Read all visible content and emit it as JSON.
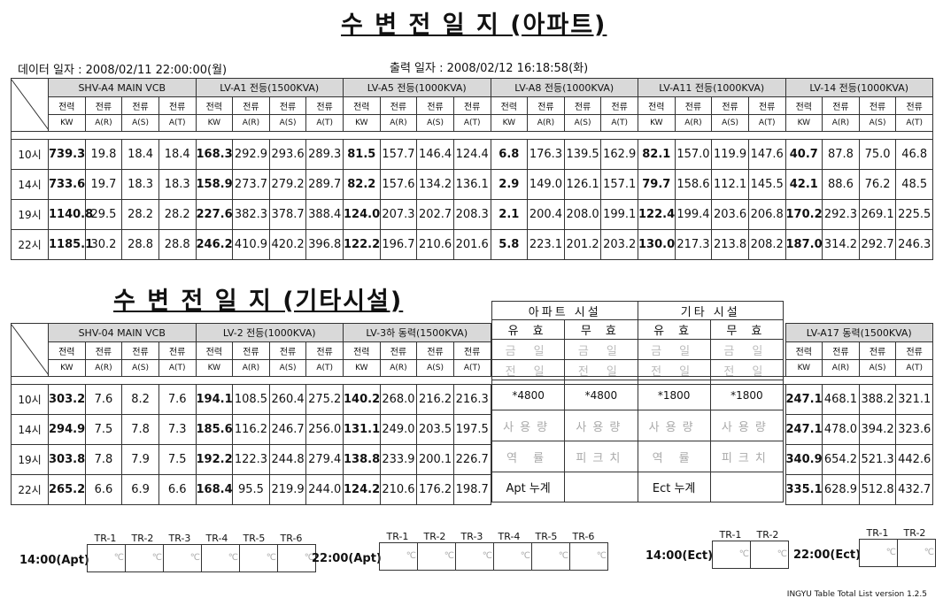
{
  "title_apt": "수 변 전 일 지 (아파트)",
  "title_etc": "수 변 전 일 지 (기타시설)",
  "data_date": "데이터 일자 : 2008/02/11 22:00:00(월)",
  "print_date": "출력 일자 :   2008/02/12  16:18:58(화)",
  "sub_headers": [
    "전력",
    "전류",
    "전류",
    "전류"
  ],
  "unit_headers": [
    "KW",
    "A(R)",
    "A(S)",
    "A(T)"
  ],
  "apt": {
    "groups": [
      "SHV-A4 MAIN VCB",
      "LV-A1 전등(1500KVA)",
      "LV-A5 전등(1000KVA)",
      "LV-A8 전등(1000KVA)",
      "LV-A11 전등(1000KVA)",
      "LV-14 전등(1000KVA)"
    ],
    "rows": [
      {
        "time": "10시",
        "values": [
          "739.3",
          "19.8",
          "18.4",
          "18.4",
          "168.3",
          "292.9",
          "293.6",
          "289.3",
          "81.5",
          "157.7",
          "146.4",
          "124.4",
          "6.8",
          "176.3",
          "139.5",
          "162.9",
          "82.1",
          "157.0",
          "119.9",
          "147.6",
          "40.7",
          "87.8",
          "75.0",
          "46.8"
        ]
      },
      {
        "time": "14시",
        "values": [
          "733.6",
          "19.7",
          "18.3",
          "18.3",
          "158.9",
          "273.7",
          "279.2",
          "289.7",
          "82.2",
          "157.6",
          "134.2",
          "136.1",
          "2.9",
          "149.0",
          "126.1",
          "157.1",
          "79.7",
          "158.6",
          "112.1",
          "145.5",
          "42.1",
          "88.6",
          "76.2",
          "48.5"
        ]
      },
      {
        "time": "19시",
        "values": [
          "1140.8",
          "29.5",
          "28.2",
          "28.2",
          "227.6",
          "382.3",
          "378.7",
          "388.4",
          "124.0",
          "207.3",
          "202.7",
          "208.3",
          "2.1",
          "200.4",
          "208.0",
          "199.1",
          "122.4",
          "199.4",
          "203.6",
          "206.8",
          "170.2",
          "292.3",
          "269.1",
          "225.5"
        ]
      },
      {
        "time": "22시",
        "values": [
          "1185.1",
          "30.2",
          "28.8",
          "28.8",
          "246.2",
          "410.9",
          "420.2",
          "396.8",
          "122.2",
          "196.7",
          "210.6",
          "201.6",
          "5.8",
          "223.1",
          "201.2",
          "203.2",
          "130.0",
          "217.3",
          "213.8",
          "208.2",
          "187.0",
          "314.2",
          "292.7",
          "246.3"
        ]
      }
    ]
  },
  "etc": {
    "groups": [
      "SHV-04 MAIN VCB",
      "LV-2 전등(1000KVA)",
      "LV-3하 동력(1500KVA)"
    ],
    "rows": [
      {
        "time": "10시",
        "values": [
          "303.2",
          "7.6",
          "8.2",
          "7.6",
          "194.1",
          "108.5",
          "260.4",
          "275.2",
          "140.2",
          "268.0",
          "216.2",
          "216.3"
        ]
      },
      {
        "time": "14시",
        "values": [
          "294.9",
          "7.5",
          "7.8",
          "7.3",
          "185.6",
          "116.2",
          "246.7",
          "256.0",
          "131.1",
          "249.0",
          "203.5",
          "197.5"
        ]
      },
      {
        "time": "19시",
        "values": [
          "303.8",
          "7.8",
          "7.9",
          "7.5",
          "192.2",
          "122.3",
          "244.8",
          "279.4",
          "138.8",
          "233.9",
          "200.1",
          "226.7"
        ]
      },
      {
        "time": "22시",
        "values": [
          "265.2",
          "6.6",
          "6.9",
          "6.6",
          "168.4",
          "95.5",
          "219.9",
          "244.0",
          "124.2",
          "210.6",
          "176.2",
          "198.7"
        ]
      }
    ],
    "right_group": "LV-A17 동력(1500KVA)",
    "right_rows": [
      [
        "247.1",
        "468.1",
        "388.2",
        "321.1"
      ],
      [
        "247.1",
        "478.0",
        "394.2",
        "323.6"
      ],
      [
        "340.9",
        "654.2",
        "521.3",
        "442.6"
      ],
      [
        "335.1",
        "628.9",
        "512.8",
        "432.7"
      ]
    ]
  },
  "facility": {
    "apt_label": "아파트 시설",
    "etc_label": "기타 시설",
    "effective": "유 효",
    "reactive": "무 효",
    "today": "금 일",
    "previous": "전 일",
    "apt_eff_value": "*4800",
    "apt_react_value": "*4800",
    "etc_eff_value": "*1800",
    "etc_react_value": "*1800",
    "usage": "사용량",
    "power_factor": "역 률",
    "peak": "피크치",
    "apt_total": "Apt 누계",
    "etc_total": "Ect 누계"
  },
  "transformers": {
    "apt_1400": "14:00(Apt)",
    "apt_2200": "22:00(Apt)",
    "etc_1400": "14:00(Ect)",
    "etc_2200": "22:00(Ect)",
    "labels6": [
      "TR-1",
      "TR-2",
      "TR-3",
      "TR-4",
      "TR-5",
      "TR-6"
    ],
    "labels2": [
      "TR-1",
      "TR-2"
    ],
    "unit": "℃"
  },
  "footer": "INGYU Table Total List version 1.2.5"
}
